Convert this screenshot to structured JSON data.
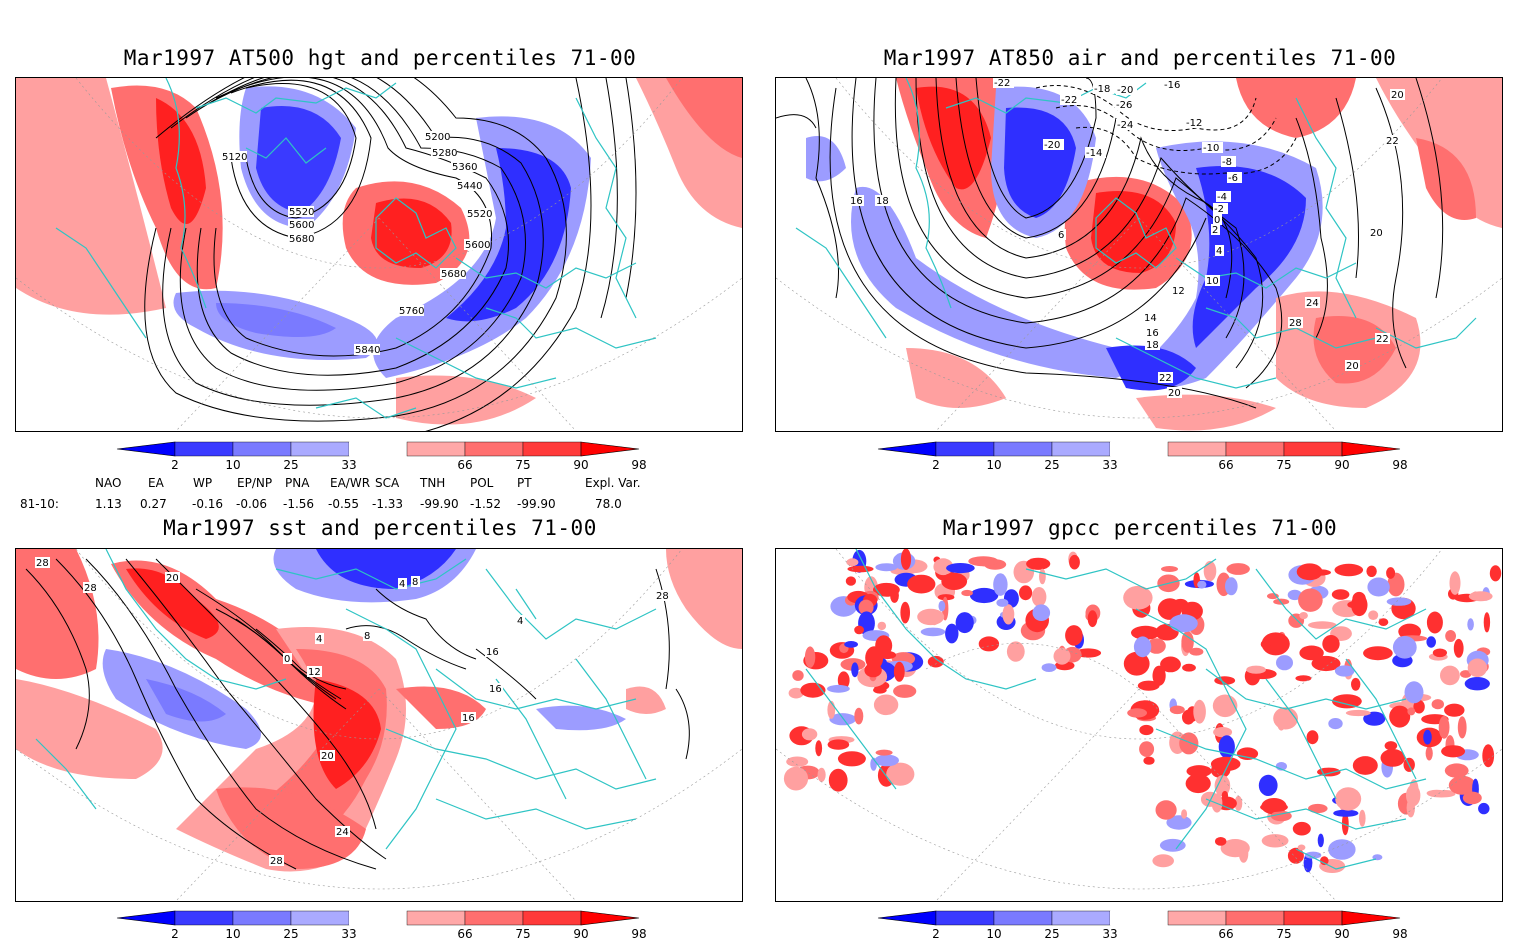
{
  "panels": [
    {
      "title": "Mar1997 AT500 hgt and percentiles 71-00",
      "contour_labels": [
        "5120",
        "5200",
        "5280",
        "5360",
        "5440",
        "5520",
        "5520",
        "5600",
        "5600",
        "5680",
        "5680",
        "5760",
        "5840"
      ]
    },
    {
      "title": "Mar1997 AT850 air and percentiles 71-00",
      "contour_labels": [
        "-22",
        "-18",
        "-20",
        "-16",
        "-22",
        "-26",
        "-24",
        "-12",
        "-20",
        "-14",
        "-10",
        "-8",
        "-6",
        "-4",
        "-2",
        "0",
        "2",
        "4",
        "6",
        "10",
        "12",
        "14",
        "16",
        "18",
        "22",
        "20",
        "24",
        "28",
        "22",
        "20",
        "16",
        "18",
        "20",
        "22",
        "20"
      ]
    },
    {
      "title": "Mar1997 sst and percentiles 71-00",
      "contour_labels": [
        "28",
        "28",
        "20",
        "4",
        "0",
        "4",
        "8",
        "12",
        "16",
        "16",
        "16",
        "20",
        "24",
        "28",
        "28",
        "4",
        "8"
      ]
    },
    {
      "title": "Mar1997 gpcc percentiles 71-00",
      "contour_labels": []
    }
  ],
  "colorbar": {
    "ticks": [
      "2",
      "10",
      "25",
      "33",
      "66",
      "75",
      "90",
      "98"
    ],
    "colors": [
      "#0000ff",
      "#3a3aff",
      "#7a7aff",
      "#aaaaff",
      "#ffffff",
      "#ffa8a8",
      "#ff6f6f",
      "#ff3a3a",
      "#ff0000"
    ]
  },
  "indices": {
    "headers": [
      "NAO",
      "EA",
      "WP",
      "EP/NP",
      "PNA",
      "EA/WR",
      "SCA",
      "TNH",
      "POL",
      "PT",
      "Expl. Var."
    ],
    "row_label": "81-10:",
    "values": [
      "1.13",
      "0.27",
      "-0.16",
      "-0.06",
      "-1.56",
      "-0.55",
      "-1.33",
      "-99.90",
      "-1.52",
      "-99.90",
      "78.0"
    ]
  },
  "colors": {
    "coast": "#2ec4c4",
    "red": "#ff3030",
    "blue": "#2f2fff",
    "pink": "#ffa0a0",
    "lightblue": "#9c9cff",
    "contour": "#000000"
  }
}
